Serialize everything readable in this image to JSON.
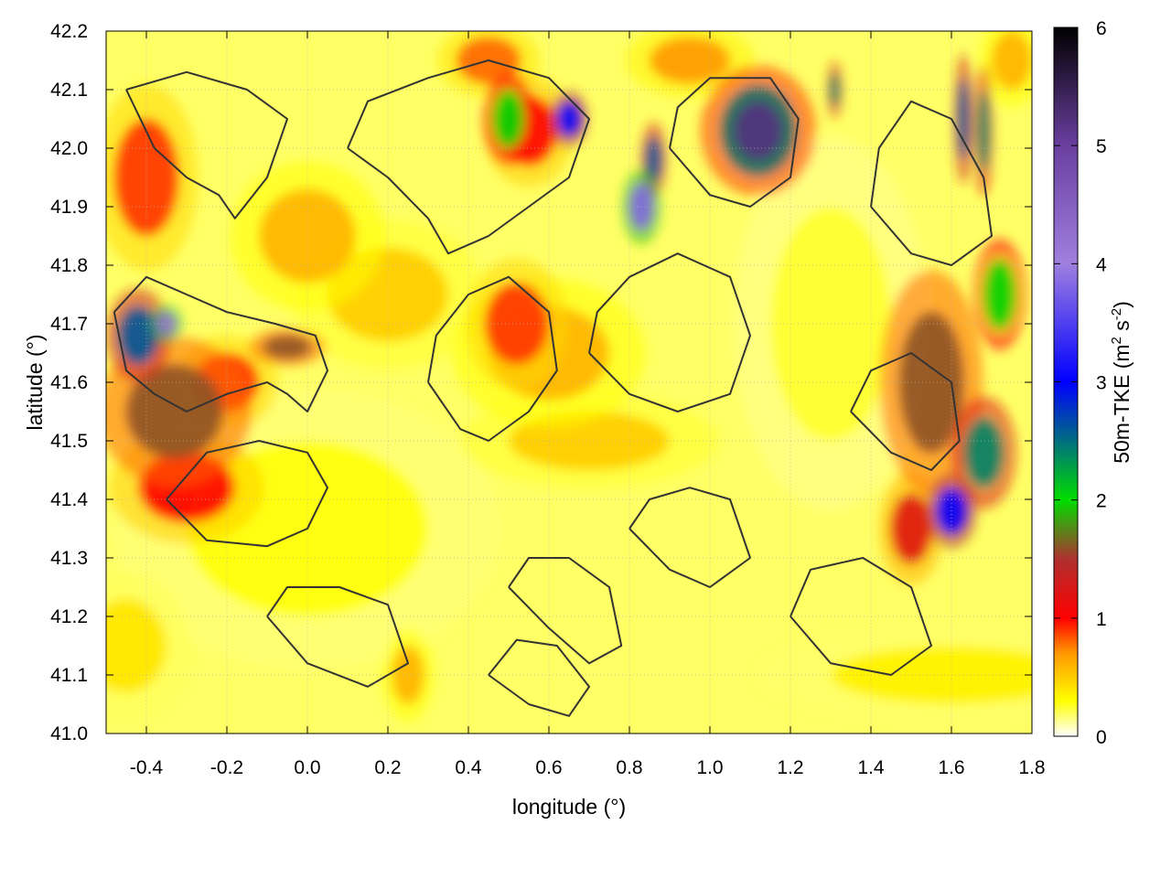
{
  "chart_data": {
    "type": "heatmap",
    "title": "",
    "xlabel": "longitude (°)",
    "ylabel": "latitude (°)",
    "xlim": [
      -0.5,
      1.8
    ],
    "ylim": [
      41.0,
      42.2
    ],
    "xticks": [
      "-0.4",
      "-0.2",
      "0.0",
      "0.2",
      "0.4",
      "0.6",
      "0.8",
      "1.0",
      "1.2",
      "1.4",
      "1.6",
      "1.8"
    ],
    "xtick_values": [
      -0.4,
      -0.2,
      0.0,
      0.2,
      0.4,
      0.6,
      0.8,
      1.0,
      1.2,
      1.4,
      1.6,
      1.8
    ],
    "yticks": [
      "41.0",
      "41.1",
      "41.2",
      "41.3",
      "41.4",
      "41.5",
      "41.6",
      "41.7",
      "41.8",
      "41.9",
      "42.0",
      "42.1",
      "42.2"
    ],
    "ytick_values": [
      41.0,
      41.1,
      41.2,
      41.3,
      41.4,
      41.5,
      41.6,
      41.7,
      41.8,
      41.9,
      42.0,
      42.1,
      42.2
    ],
    "grid": true,
    "colorbar": {
      "label_text": "50m-TKE (m",
      "label_sup1": "2",
      "label_mid": " s",
      "label_sup2": "-2",
      "label_end": ")",
      "range": [
        0,
        6
      ],
      "ticks": [
        "0",
        "1",
        "2",
        "3",
        "4",
        "5",
        "6"
      ],
      "tick_values": [
        0,
        1,
        2,
        3,
        4,
        5,
        6
      ],
      "palette": [
        {
          "value": 0.0,
          "color": "#ffffff"
        },
        {
          "value": 0.3,
          "color": "#ffff00"
        },
        {
          "value": 0.7,
          "color": "#ff9900"
        },
        {
          "value": 1.0,
          "color": "#ff0000"
        },
        {
          "value": 1.5,
          "color": "#b03030"
        },
        {
          "value": 2.0,
          "color": "#00dd00"
        },
        {
          "value": 3.0,
          "color": "#0000ff"
        },
        {
          "value": 4.0,
          "color": "#9f7fdf"
        },
        {
          "value": 5.0,
          "color": "#6a3fa0"
        },
        {
          "value": 6.0,
          "color": "#000000"
        }
      ]
    },
    "hotspots": [
      {
        "lon": -0.33,
        "lat": 41.55,
        "tke": 1.6,
        "sx": 0.12,
        "sy": 0.08
      },
      {
        "lon": -0.42,
        "lat": 41.68,
        "tke": 2.6,
        "sx": 0.05,
        "sy": 0.05
      },
      {
        "lon": -0.35,
        "lat": 41.7,
        "tke": 4.2,
        "sx": 0.025,
        "sy": 0.02
      },
      {
        "lon": -0.3,
        "lat": 41.42,
        "tke": 1.0,
        "sx": 0.12,
        "sy": 0.06
      },
      {
        "lon": -0.2,
        "lat": 41.6,
        "tke": 0.9,
        "sx": 0.08,
        "sy": 0.05
      },
      {
        "lon": -0.05,
        "lat": 41.66,
        "tke": 1.6,
        "sx": 0.06,
        "sy": 0.02
      },
      {
        "lon": -0.4,
        "lat": 41.95,
        "tke": 0.9,
        "sx": 0.08,
        "sy": 0.1
      },
      {
        "lon": 0.52,
        "lat": 41.7,
        "tke": 0.9,
        "sx": 0.08,
        "sy": 0.07
      },
      {
        "lon": 0.6,
        "lat": 41.65,
        "tke": 0.6,
        "sx": 0.15,
        "sy": 0.08
      },
      {
        "lon": 0.5,
        "lat": 42.05,
        "tke": 2.0,
        "sx": 0.04,
        "sy": 0.05
      },
      {
        "lon": 0.55,
        "lat": 42.03,
        "tke": 1.0,
        "sx": 0.07,
        "sy": 0.06
      },
      {
        "lon": 0.65,
        "lat": 42.05,
        "tke": 3.0,
        "sx": 0.03,
        "sy": 0.03
      },
      {
        "lon": 0.83,
        "lat": 41.9,
        "tke": 3.8,
        "sx": 0.03,
        "sy": 0.04
      },
      {
        "lon": 0.86,
        "lat": 41.98,
        "tke": 2.6,
        "sx": 0.02,
        "sy": 0.04
      },
      {
        "lon": 1.12,
        "lat": 42.03,
        "tke": 5.2,
        "sx": 0.06,
        "sy": 0.05
      },
      {
        "lon": 1.12,
        "lat": 42.03,
        "tke": 1.8,
        "sx": 0.09,
        "sy": 0.07
      },
      {
        "lon": 1.31,
        "lat": 42.1,
        "tke": 2.4,
        "sx": 0.012,
        "sy": 0.03
      },
      {
        "lon": 1.63,
        "lat": 42.05,
        "tke": 2.6,
        "sx": 0.015,
        "sy": 0.07
      },
      {
        "lon": 1.68,
        "lat": 42.03,
        "tke": 2.4,
        "sx": 0.015,
        "sy": 0.07
      },
      {
        "lon": 1.55,
        "lat": 41.6,
        "tke": 1.6,
        "sx": 0.08,
        "sy": 0.12
      },
      {
        "lon": 1.72,
        "lat": 41.75,
        "tke": 2.0,
        "sx": 0.04,
        "sy": 0.06
      },
      {
        "lon": 1.68,
        "lat": 41.48,
        "tke": 2.4,
        "sx": 0.05,
        "sy": 0.06
      },
      {
        "lon": 1.6,
        "lat": 41.38,
        "tke": 3.0,
        "sx": 0.04,
        "sy": 0.04
      },
      {
        "lon": 1.5,
        "lat": 41.35,
        "tke": 1.2,
        "sx": 0.05,
        "sy": 0.06
      },
      {
        "lon": 0.7,
        "lat": 41.5,
        "tke": 0.5,
        "sx": 0.2,
        "sy": 0.05
      },
      {
        "lon": 0.2,
        "lat": 41.75,
        "tke": 0.5,
        "sx": 0.15,
        "sy": 0.08
      },
      {
        "lon": 0.0,
        "lat": 41.85,
        "tke": 0.6,
        "sx": 0.12,
        "sy": 0.08
      },
      {
        "lon": 0.25,
        "lat": 41.1,
        "tke": 0.6,
        "sx": 0.04,
        "sy": 0.05
      },
      {
        "lon": 0.45,
        "lat": 42.15,
        "tke": 0.8,
        "sx": 0.08,
        "sy": 0.04
      },
      {
        "lon": 0.95,
        "lat": 42.15,
        "tke": 0.7,
        "sx": 0.1,
        "sy": 0.04
      },
      {
        "lon": 1.75,
        "lat": 42.15,
        "tke": 0.6,
        "sx": 0.05,
        "sy": 0.05
      },
      {
        "lon": 1.6,
        "lat": 41.1,
        "tke": 0.35,
        "sx": 0.3,
        "sy": 0.05
      },
      {
        "lon": -0.45,
        "lat": 41.15,
        "tke": 0.4,
        "sx": 0.1,
        "sy": 0.08
      },
      {
        "lon": 0.0,
        "lat": 41.35,
        "tke": 0.3,
        "sx": 0.3,
        "sy": 0.15
      },
      {
        "lon": 1.3,
        "lat": 41.7,
        "tke": 0.25,
        "sx": 0.15,
        "sy": 0.2
      }
    ],
    "contours": [
      [
        [
          -0.48,
          41.72
        ],
        [
          -0.45,
          41.62
        ],
        [
          -0.38,
          41.58
        ],
        [
          -0.3,
          41.55
        ],
        [
          -0.2,
          41.58
        ],
        [
          -0.1,
          41.6
        ],
        [
          -0.05,
          41.58
        ],
        [
          0.0,
          41.55
        ],
        [
          0.05,
          41.62
        ],
        [
          0.02,
          41.68
        ],
        [
          -0.08,
          41.7
        ],
        [
          -0.2,
          41.72
        ],
        [
          -0.3,
          41.75
        ],
        [
          -0.4,
          41.78
        ],
        [
          -0.48,
          41.72
        ]
      ],
      [
        [
          -0.35,
          41.4
        ],
        [
          -0.25,
          41.33
        ],
        [
          -0.1,
          41.32
        ],
        [
          0.0,
          41.35
        ],
        [
          0.05,
          41.42
        ],
        [
          0.0,
          41.48
        ],
        [
          -0.12,
          41.5
        ],
        [
          -0.25,
          41.48
        ],
        [
          -0.35,
          41.4
        ]
      ],
      [
        [
          -0.45,
          42.1
        ],
        [
          -0.38,
          42.0
        ],
        [
          -0.3,
          41.95
        ],
        [
          -0.22,
          41.92
        ],
        [
          -0.18,
          41.88
        ],
        [
          -0.1,
          41.95
        ],
        [
          -0.05,
          42.05
        ],
        [
          -0.15,
          42.1
        ],
        [
          -0.3,
          42.13
        ],
        [
          -0.45,
          42.1
        ]
      ],
      [
        [
          0.1,
          42.0
        ],
        [
          0.2,
          41.95
        ],
        [
          0.3,
          41.88
        ],
        [
          0.35,
          41.82
        ],
        [
          0.45,
          41.85
        ],
        [
          0.55,
          41.9
        ],
        [
          0.65,
          41.95
        ],
        [
          0.7,
          42.05
        ],
        [
          0.6,
          42.12
        ],
        [
          0.45,
          42.15
        ],
        [
          0.3,
          42.12
        ],
        [
          0.15,
          42.08
        ],
        [
          0.1,
          42.0
        ]
      ],
      [
        [
          0.3,
          41.6
        ],
        [
          0.38,
          41.52
        ],
        [
          0.45,
          41.5
        ],
        [
          0.55,
          41.55
        ],
        [
          0.62,
          41.62
        ],
        [
          0.6,
          41.72
        ],
        [
          0.5,
          41.78
        ],
        [
          0.4,
          41.75
        ],
        [
          0.32,
          41.68
        ],
        [
          0.3,
          41.6
        ]
      ],
      [
        [
          0.7,
          41.65
        ],
        [
          0.8,
          41.58
        ],
        [
          0.92,
          41.55
        ],
        [
          1.05,
          41.58
        ],
        [
          1.1,
          41.68
        ],
        [
          1.05,
          41.78
        ],
        [
          0.92,
          41.82
        ],
        [
          0.8,
          41.78
        ],
        [
          0.72,
          41.72
        ],
        [
          0.7,
          41.65
        ]
      ],
      [
        [
          0.8,
          41.35
        ],
        [
          0.9,
          41.28
        ],
        [
          1.0,
          41.25
        ],
        [
          1.1,
          41.3
        ],
        [
          1.05,
          41.4
        ],
        [
          0.95,
          41.42
        ],
        [
          0.85,
          41.4
        ],
        [
          0.8,
          41.35
        ]
      ],
      [
        [
          0.5,
          41.25
        ],
        [
          0.6,
          41.18
        ],
        [
          0.7,
          41.12
        ],
        [
          0.78,
          41.15
        ],
        [
          0.75,
          41.25
        ],
        [
          0.65,
          41.3
        ],
        [
          0.55,
          41.3
        ],
        [
          0.5,
          41.25
        ]
      ],
      [
        [
          0.45,
          41.1
        ],
        [
          0.55,
          41.05
        ],
        [
          0.65,
          41.03
        ],
        [
          0.7,
          41.08
        ],
        [
          0.62,
          41.15
        ],
        [
          0.52,
          41.16
        ],
        [
          0.45,
          41.1
        ]
      ],
      [
        [
          1.2,
          41.2
        ],
        [
          1.3,
          41.12
        ],
        [
          1.45,
          41.1
        ],
        [
          1.55,
          41.15
        ],
        [
          1.5,
          41.25
        ],
        [
          1.38,
          41.3
        ],
        [
          1.25,
          41.28
        ],
        [
          1.2,
          41.2
        ]
      ],
      [
        [
          1.4,
          41.9
        ],
        [
          1.5,
          41.82
        ],
        [
          1.6,
          41.8
        ],
        [
          1.7,
          41.85
        ],
        [
          1.68,
          41.95
        ],
        [
          1.6,
          42.05
        ],
        [
          1.5,
          42.08
        ],
        [
          1.42,
          42.0
        ],
        [
          1.4,
          41.9
        ]
      ],
      [
        [
          1.35,
          41.55
        ],
        [
          1.45,
          41.48
        ],
        [
          1.55,
          41.45
        ],
        [
          1.62,
          41.5
        ],
        [
          1.6,
          41.6
        ],
        [
          1.5,
          41.65
        ],
        [
          1.4,
          41.62
        ],
        [
          1.35,
          41.55
        ]
      ],
      [
        [
          -0.1,
          41.2
        ],
        [
          0.0,
          41.12
        ],
        [
          0.15,
          41.08
        ],
        [
          0.25,
          41.12
        ],
        [
          0.2,
          41.22
        ],
        [
          0.08,
          41.25
        ],
        [
          -0.05,
          41.25
        ],
        [
          -0.1,
          41.2
        ]
      ],
      [
        [
          0.9,
          42.0
        ],
        [
          1.0,
          41.92
        ],
        [
          1.1,
          41.9
        ],
        [
          1.2,
          41.95
        ],
        [
          1.22,
          42.05
        ],
        [
          1.15,
          42.12
        ],
        [
          1.0,
          42.12
        ],
        [
          0.92,
          42.07
        ],
        [
          0.9,
          42.0
        ]
      ]
    ]
  }
}
